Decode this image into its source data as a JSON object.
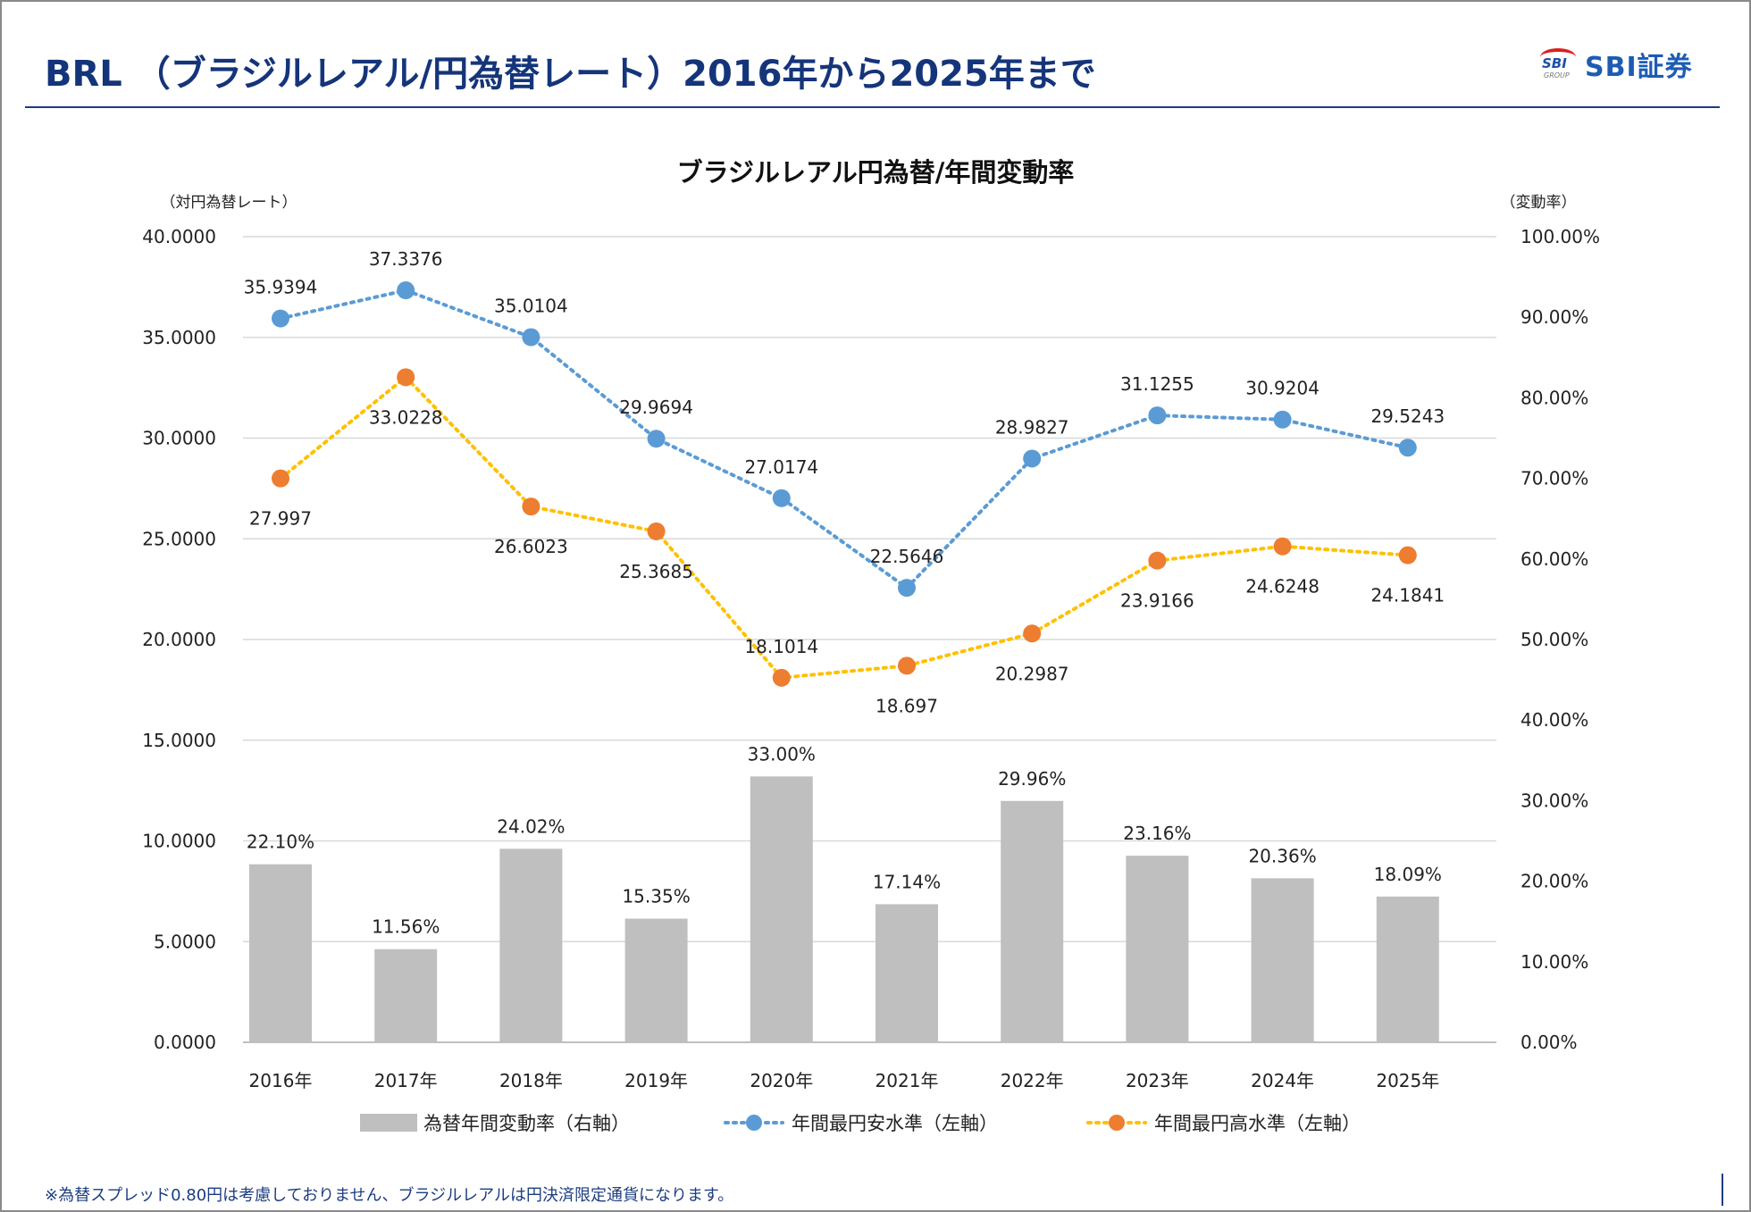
{
  "header": {
    "title": "BRL （ブラジルレアル/円為替レート）2016年から2025年まで",
    "logo_mark": "SBI GROUP",
    "logo_text": "SBI証券"
  },
  "footnote": "※為替スプレッド0.80円は考慮しておりません、ブラジルレアルは円決済限定通貨になります。",
  "chart_data": {
    "type": "bar+line",
    "title": "ブラジルレアル円為替/年間変動率",
    "ylabel_left": "（対円為替レート）",
    "ylabel_right": "（変動率）",
    "ylim_left": [
      0,
      40
    ],
    "ylim_right": [
      0,
      100
    ],
    "left_ticks": [
      "0.0000",
      "5.0000",
      "10.0000",
      "15.0000",
      "20.0000",
      "25.0000",
      "30.0000",
      "35.0000",
      "40.0000"
    ],
    "right_ticks": [
      "0.00%",
      "10.00%",
      "20.00%",
      "30.00%",
      "40.00%",
      "50.00%",
      "60.00%",
      "70.00%",
      "80.00%",
      "90.00%",
      "100.00%"
    ],
    "grid": true,
    "legend_position": "bottom",
    "categories": [
      "2016年",
      "2017年",
      "2018年",
      "2019年",
      "2020年",
      "2021年",
      "2022年",
      "2023年",
      "2024年",
      "2025年"
    ],
    "series": [
      {
        "name": "為替年間変動率（右軸）",
        "type": "bar",
        "axis": "right",
        "color": "#bfbfbf",
        "values": [
          22.1,
          11.56,
          24.02,
          15.35,
          33.0,
          17.14,
          29.96,
          23.16,
          20.36,
          18.09
        ],
        "labels": [
          "22.10%",
          "11.56%",
          "24.02%",
          "15.35%",
          "33.00%",
          "17.14%",
          "29.96%",
          "23.16%",
          "20.36%",
          "18.09%"
        ]
      },
      {
        "name": "年間最円安水準（左軸）",
        "type": "line",
        "axis": "left",
        "color": "#5b9bd5",
        "values": [
          35.9394,
          37.3376,
          35.0104,
          29.9694,
          27.0174,
          22.5646,
          28.9827,
          31.1255,
          30.9204,
          29.5243
        ],
        "labels": [
          "35.9394",
          "37.3376",
          "35.0104",
          "29.9694",
          "27.0174",
          "22.5646",
          "28.9827",
          "31.1255",
          "30.9204",
          "29.5243"
        ]
      },
      {
        "name": "年間最円高水準（左軸）",
        "type": "line",
        "axis": "left",
        "color": "#ed7d31",
        "line_color": "#ffc000",
        "values": [
          27.997,
          33.0228,
          26.6023,
          25.3685,
          18.1014,
          18.697,
          20.2987,
          23.9166,
          24.6248,
          24.1841
        ],
        "labels": [
          "27.997",
          "33.0228",
          "26.6023",
          "25.3685",
          "18.1014",
          "18.697",
          "20.2987",
          "23.9166",
          "24.6248",
          "24.1841"
        ]
      }
    ]
  }
}
